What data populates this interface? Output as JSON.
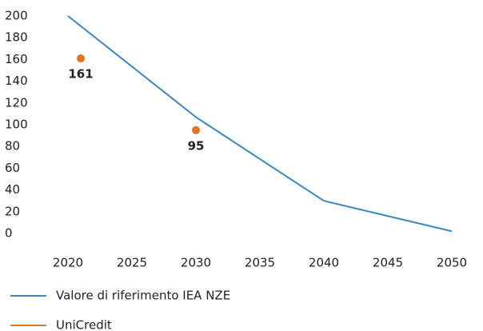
{
  "chart_data": {
    "type": "line",
    "x": [
      2020,
      2030,
      2040,
      2050
    ],
    "series": [
      {
        "name": "Valore di riferimento IEA NZE",
        "color": "#3a87c8",
        "values": [
          200,
          107,
          30,
          2
        ]
      },
      {
        "name": "UniCredit",
        "color": "#e8731c",
        "type": "scatter",
        "x": [
          2021,
          2030
        ],
        "values": [
          161,
          95
        ]
      }
    ],
    "xlim": [
      2020,
      2050
    ],
    "xticks": [
      2020,
      2025,
      2030,
      2035,
      2040,
      2045,
      2050
    ],
    "ylim": [
      0,
      200
    ],
    "yticks": [
      0,
      20,
      40,
      60,
      80,
      100,
      120,
      140,
      160,
      180,
      200
    ],
    "grid": false
  }
}
